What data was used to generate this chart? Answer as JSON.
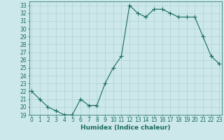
{
  "x": [
    0,
    1,
    2,
    3,
    4,
    5,
    6,
    7,
    8,
    9,
    10,
    11,
    12,
    13,
    14,
    15,
    16,
    17,
    18,
    19,
    20,
    21,
    22,
    23
  ],
  "y": [
    22,
    21,
    20,
    19.5,
    19,
    19,
    21,
    20.2,
    20.2,
    23,
    25,
    26.5,
    33,
    32,
    31.5,
    32.5,
    32.5,
    32,
    31.5,
    31.5,
    31.5,
    29,
    26.5,
    25.5
  ],
  "line_color": "#1a6b5a",
  "marker": "+",
  "marker_size": 4,
  "bg_color": "#cce8ea",
  "grid_color": "#aacdd0",
  "tick_color": "#1a6b5a",
  "xlabel": "Humidex (Indice chaleur)",
  "ylim": [
    19,
    33.5
  ],
  "xlim": [
    -0.3,
    23.3
  ],
  "yticks": [
    19,
    20,
    21,
    22,
    23,
    24,
    25,
    26,
    27,
    28,
    29,
    30,
    31,
    32,
    33
  ],
  "xticks": [
    0,
    1,
    2,
    3,
    4,
    5,
    6,
    7,
    8,
    9,
    10,
    11,
    12,
    13,
    14,
    15,
    16,
    17,
    18,
    19,
    20,
    21,
    22,
    23
  ],
  "label_fontsize": 6.5,
  "tick_fontsize": 5.5
}
